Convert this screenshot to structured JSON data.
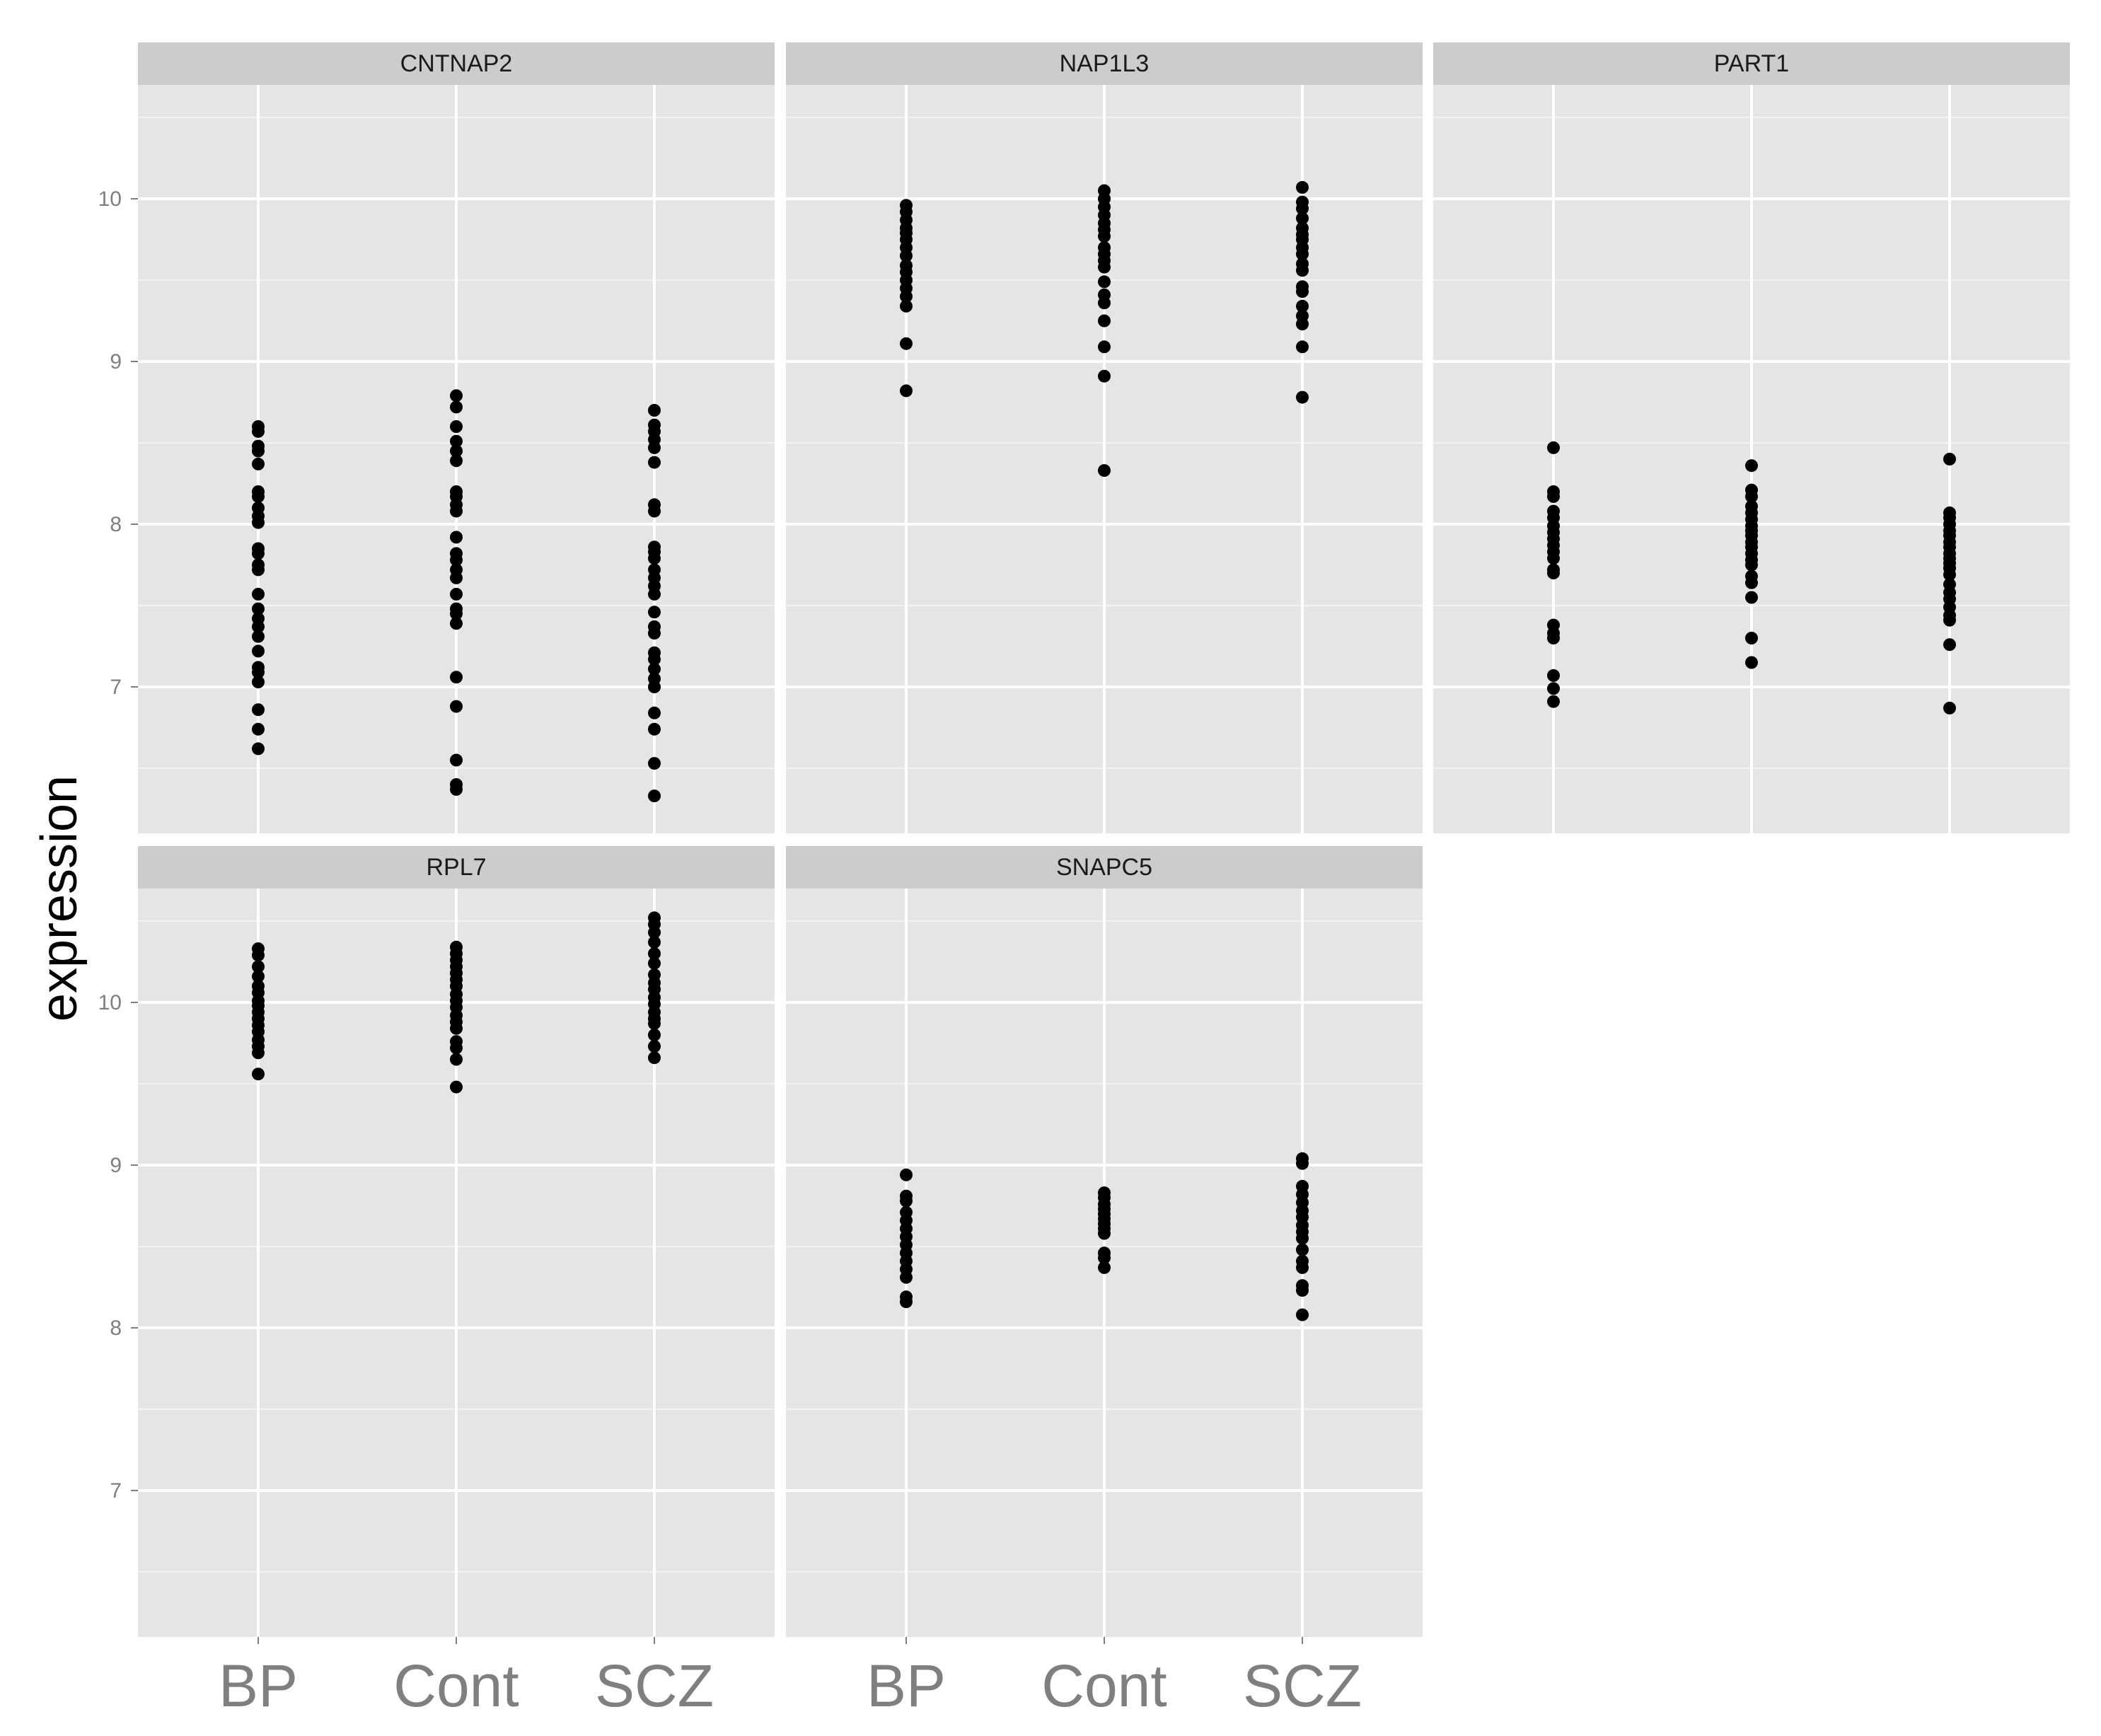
{
  "chart_data": {
    "type": "scatter",
    "facet_layout": "3 columns x 2 rows",
    "xlabel": "",
    "ylabel": "expression",
    "categories": [
      "BP",
      "Cont",
      "SCZ"
    ],
    "ylim": [
      6.1,
      10.7
    ],
    "yticks": [
      7,
      8,
      9,
      10
    ],
    "grid": true,
    "point_color": "#000000",
    "panel_background": "#e5e5e5",
    "strip_background": "#cccccc",
    "grid_color": "#ffffff",
    "panels": [
      {
        "name": "CNTNAP2",
        "points": {
          "BP": [
            8.6,
            8.57,
            8.48,
            8.45,
            8.37,
            8.2,
            8.17,
            8.1,
            8.05,
            8.01,
            7.85,
            7.82,
            7.75,
            7.72,
            7.57,
            7.48,
            7.42,
            7.37,
            7.31,
            7.22,
            7.12,
            7.09,
            7.03,
            6.86,
            6.74,
            6.62
          ],
          "Cont": [
            8.79,
            8.72,
            8.6,
            8.51,
            8.45,
            8.39,
            8.2,
            8.17,
            8.12,
            8.08,
            7.92,
            7.82,
            7.78,
            7.72,
            7.67,
            7.57,
            7.48,
            7.45,
            7.39,
            7.06,
            6.88,
            6.55,
            6.4,
            6.37
          ],
          "SCZ": [
            8.7,
            8.61,
            8.57,
            8.52,
            8.47,
            8.38,
            8.12,
            8.08,
            7.86,
            7.83,
            7.79,
            7.72,
            7.67,
            7.62,
            7.57,
            7.46,
            7.37,
            7.33,
            7.21,
            7.17,
            7.11,
            7.05,
            7.0,
            6.84,
            6.74,
            6.53,
            6.33
          ]
        }
      },
      {
        "name": "NAP1L3",
        "points": {
          "BP": [
            9.96,
            9.92,
            9.87,
            9.82,
            9.79,
            9.75,
            9.7,
            9.65,
            9.59,
            9.55,
            9.5,
            9.45,
            9.4,
            9.34,
            9.11,
            8.82
          ],
          "Cont": [
            10.05,
            10.0,
            9.95,
            9.9,
            9.85,
            9.81,
            9.77,
            9.7,
            9.66,
            9.62,
            9.58,
            9.49,
            9.41,
            9.36,
            9.25,
            9.09,
            8.91,
            8.33
          ],
          "SCZ": [
            10.07,
            9.98,
            9.94,
            9.88,
            9.82,
            9.78,
            9.75,
            9.7,
            9.66,
            9.6,
            9.56,
            9.46,
            9.43,
            9.34,
            9.28,
            9.23,
            9.09,
            8.78
          ]
        }
      },
      {
        "name": "PART1",
        "points": {
          "BP": [
            8.47,
            8.2,
            8.17,
            8.08,
            8.04,
            7.99,
            7.95,
            7.91,
            7.87,
            7.83,
            7.79,
            7.72,
            7.7,
            7.38,
            7.33,
            7.3,
            7.07,
            6.99,
            6.91
          ],
          "Cont": [
            8.36,
            8.21,
            8.17,
            8.11,
            8.07,
            8.03,
            7.99,
            7.96,
            7.93,
            7.89,
            7.86,
            7.82,
            7.78,
            7.75,
            7.68,
            7.64,
            7.55,
            7.3,
            7.15
          ],
          "SCZ": [
            8.4,
            8.07,
            8.04,
            8.0,
            7.96,
            7.93,
            7.89,
            7.86,
            7.82,
            7.79,
            7.76,
            7.73,
            7.69,
            7.63,
            7.58,
            7.54,
            7.49,
            7.44,
            7.41,
            7.26,
            6.87
          ]
        }
      },
      {
        "name": "RPL7",
        "points": {
          "BP": [
            10.33,
            10.29,
            10.22,
            10.16,
            10.1,
            10.06,
            10.01,
            9.98,
            9.94,
            9.9,
            9.86,
            9.82,
            9.77,
            9.73,
            9.69,
            9.56
          ],
          "Cont": [
            10.34,
            10.3,
            10.26,
            10.22,
            10.18,
            10.14,
            10.1,
            10.05,
            10.01,
            9.97,
            9.92,
            9.88,
            9.84,
            9.76,
            9.72,
            9.65,
            9.48
          ],
          "SCZ": [
            10.52,
            10.48,
            10.43,
            10.37,
            10.3,
            10.24,
            10.17,
            10.12,
            10.08,
            10.03,
            9.99,
            9.94,
            9.9,
            9.87,
            9.8,
            9.73,
            9.66
          ]
        }
      },
      {
        "name": "SNAPC5",
        "points": {
          "BP": [
            8.94,
            8.81,
            8.78,
            8.71,
            8.66,
            8.61,
            8.56,
            8.51,
            8.46,
            8.41,
            8.36,
            8.31,
            8.19,
            8.16
          ],
          "Cont": [
            8.83,
            8.8,
            8.76,
            8.73,
            8.7,
            8.67,
            8.64,
            8.61,
            8.58,
            8.46,
            8.43,
            8.37
          ],
          "SCZ": [
            9.04,
            9.01,
            8.87,
            8.82,
            8.77,
            8.72,
            8.68,
            8.63,
            8.59,
            8.55,
            8.48,
            8.41,
            8.37,
            8.26,
            8.23,
            8.08
          ]
        }
      }
    ]
  }
}
